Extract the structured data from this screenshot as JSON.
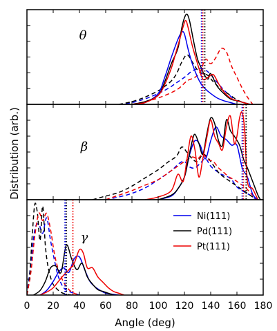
{
  "figure": {
    "ylabel": "Distribution (arb.)",
    "xlabel": "Angle (deg)",
    "x_ticks": [
      "0",
      "20",
      "40",
      "60",
      "80",
      "100",
      "120",
      "140",
      "160",
      "180"
    ],
    "legend": [
      "Ni(111)",
      "Pd(111)",
      "Pt(111)"
    ]
  },
  "colors": {
    "Ni(111)": "#0000ee",
    "Pd(111)": "#000000",
    "Pt(111)": "#ee0000"
  },
  "chart_data": [
    {
      "type": "line",
      "panel": "θ",
      "xlim": [
        0,
        180
      ],
      "x_tick_values": [
        0,
        20,
        40,
        60,
        80,
        100,
        120,
        140,
        160,
        180
      ],
      "series": [
        {
          "name": "Ni(111)",
          "style": "solid",
          "x": [
            80,
            90,
            100,
            105,
            110,
            115,
            118,
            120,
            123,
            126,
            130,
            133,
            136,
            140,
            145,
            150,
            155,
            160
          ],
          "y": [
            0,
            0.02,
            0.12,
            0.3,
            0.52,
            0.72,
            0.8,
            0.78,
            0.6,
            0.45,
            0.3,
            0.22,
            0.17,
            0.12,
            0.07,
            0.04,
            0.02,
            0
          ]
        },
        {
          "name": "Pd(111)",
          "style": "solid",
          "x": [
            80,
            90,
            100,
            105,
            110,
            115,
            118,
            120,
            122,
            124,
            127,
            130,
            133,
            135,
            138,
            140,
            145,
            150,
            155,
            160,
            165,
            170
          ],
          "y": [
            0,
            0.03,
            0.1,
            0.25,
            0.45,
            0.62,
            0.85,
            0.96,
            1.0,
            0.92,
            0.7,
            0.5,
            0.4,
            0.33,
            0.28,
            0.34,
            0.2,
            0.12,
            0.06,
            0.04,
            0.02,
            0
          ]
        },
        {
          "name": "Pt(111)",
          "style": "solid",
          "x": [
            80,
            90,
            100,
            105,
            110,
            113,
            116,
            119,
            121,
            123,
            126,
            130,
            134,
            138,
            142,
            146,
            150,
            155,
            160,
            165,
            170
          ],
          "y": [
            0,
            0.02,
            0.1,
            0.22,
            0.4,
            0.55,
            0.7,
            0.86,
            0.93,
            0.84,
            0.65,
            0.45,
            0.28,
            0.3,
            0.33,
            0.23,
            0.14,
            0.07,
            0.04,
            0.02,
            0
          ]
        },
        {
          "name": "Ni(111)",
          "style": "dashed",
          "x": [
            70,
            80,
            90,
            100,
            108,
            114,
            120,
            126,
            132,
            138,
            144,
            150,
            156,
            160,
            165,
            170
          ],
          "y": [
            0,
            0.02,
            0.06,
            0.12,
            0.18,
            0.24,
            0.3,
            0.37,
            0.4,
            0.36,
            0.26,
            0.16,
            0.08,
            0.04,
            0.02,
            0
          ]
        },
        {
          "name": "Pd(111)",
          "style": "dashed",
          "x": [
            70,
            80,
            90,
            100,
            105,
            110,
            114,
            118,
            122,
            126,
            130,
            134,
            138,
            142,
            148,
            155,
            160,
            165,
            170
          ],
          "y": [
            0,
            0.03,
            0.08,
            0.15,
            0.2,
            0.26,
            0.34,
            0.47,
            0.55,
            0.47,
            0.38,
            0.34,
            0.32,
            0.25,
            0.17,
            0.1,
            0.05,
            0.02,
            0
          ]
        },
        {
          "name": "Pt(111)",
          "style": "dashed",
          "x": [
            80,
            90,
            100,
            110,
            116,
            122,
            128,
            132,
            136,
            140,
            144,
            148,
            152,
            156,
            160,
            164,
            168,
            172
          ],
          "y": [
            0,
            0.03,
            0.07,
            0.13,
            0.18,
            0.26,
            0.3,
            0.36,
            0.5,
            0.45,
            0.52,
            0.62,
            0.58,
            0.42,
            0.3,
            0.18,
            0.08,
            0
          ]
        }
      ],
      "vlines": [
        {
          "name": "Ni(111)",
          "x": 133
        },
        {
          "name": "Pd(111)",
          "x": 135.5
        },
        {
          "name": "Pt(111)",
          "x": 134
        }
      ]
    },
    {
      "type": "line",
      "panel": "β",
      "xlim": [
        0,
        180
      ],
      "x_tick_values": [
        0,
        20,
        40,
        60,
        80,
        100,
        120,
        140,
        160,
        180
      ],
      "series": [
        {
          "name": "Ni(111)",
          "style": "solid",
          "x": [
            100,
            110,
            115,
            120,
            124,
            128,
            132,
            136,
            140,
            144,
            148,
            152,
            156,
            160,
            164,
            168,
            172,
            176
          ],
          "y": [
            0,
            0.04,
            0.12,
            0.25,
            0.5,
            0.65,
            0.6,
            0.45,
            0.65,
            0.8,
            0.7,
            0.66,
            0.6,
            0.6,
            0.35,
            0.25,
            0.06,
            0
          ]
        },
        {
          "name": "Pd(111)",
          "style": "solid",
          "x": [
            100,
            110,
            115,
            120,
            123,
            126,
            128,
            131,
            134,
            137,
            140,
            143,
            146,
            149,
            152,
            155,
            158,
            162,
            165,
            168,
            172,
            176,
            178
          ],
          "y": [
            0,
            0.05,
            0.12,
            0.25,
            0.45,
            0.65,
            0.72,
            0.62,
            0.5,
            0.72,
            0.9,
            0.84,
            0.65,
            0.6,
            0.88,
            0.76,
            0.7,
            0.6,
            0.45,
            0.35,
            0.2,
            0.05,
            0
          ]
        },
        {
          "name": "Pt(111)",
          "style": "solid",
          "x": [
            90,
            100,
            110,
            115,
            119,
            122,
            125,
            128,
            131,
            134,
            137,
            140,
            143,
            146,
            149,
            152,
            155,
            158,
            160,
            162,
            164,
            166,
            168,
            172,
            176
          ],
          "y": [
            0,
            0.03,
            0.1,
            0.28,
            0.2,
            0.45,
            0.7,
            0.55,
            0.25,
            0.45,
            0.68,
            0.88,
            0.7,
            0.62,
            0.55,
            0.8,
            0.92,
            0.62,
            0.7,
            0.9,
            0.96,
            0.75,
            0.2,
            0.12,
            0
          ]
        },
        {
          "name": "Ni(111)",
          "style": "dashed",
          "x": [
            60,
            70,
            80,
            90,
            100,
            110,
            116,
            120,
            124,
            128,
            132,
            136,
            140,
            144,
            148,
            152,
            156,
            160,
            165,
            170,
            175
          ],
          "y": [
            0,
            0.03,
            0.07,
            0.13,
            0.22,
            0.32,
            0.4,
            0.42,
            0.36,
            0.35,
            0.4,
            0.45,
            0.37,
            0.32,
            0.28,
            0.26,
            0.22,
            0.14,
            0.09,
            0.05,
            0
          ]
        },
        {
          "name": "Pd(111)",
          "style": "dashed",
          "x": [
            50,
            60,
            70,
            80,
            90,
            100,
            108,
            114,
            118,
            122,
            126,
            130,
            134,
            138,
            142,
            146,
            150,
            155,
            160,
            165,
            170,
            175
          ],
          "y": [
            0,
            0.04,
            0.08,
            0.15,
            0.24,
            0.33,
            0.42,
            0.48,
            0.58,
            0.52,
            0.45,
            0.42,
            0.5,
            0.46,
            0.38,
            0.3,
            0.25,
            0.2,
            0.15,
            0.1,
            0.05,
            0
          ]
        },
        {
          "name": "Pt(111)",
          "style": "dashed",
          "x": [
            60,
            70,
            80,
            90,
            100,
            108,
            114,
            120,
            126,
            130,
            134,
            138,
            142,
            146,
            150,
            154,
            158,
            162,
            166,
            170,
            175
          ],
          "y": [
            0,
            0.05,
            0.1,
            0.16,
            0.22,
            0.3,
            0.36,
            0.42,
            0.47,
            0.45,
            0.5,
            0.44,
            0.42,
            0.35,
            0.3,
            0.25,
            0.22,
            0.18,
            0.14,
            0.08,
            0
          ]
        }
      ],
      "vlines": [
        {
          "name": "Ni(111)",
          "x": 164
        },
        {
          "name": "Pd(111)",
          "x": 167
        },
        {
          "name": "Pt(111)",
          "x": 165
        }
      ]
    },
    {
      "type": "line",
      "panel": "γ",
      "xlim": [
        0,
        180
      ],
      "x_tick_values": [
        0,
        20,
        40,
        60,
        80,
        100,
        120,
        140,
        160,
        180
      ],
      "series": [
        {
          "name": "Ni(111)",
          "style": "solid",
          "x": [
            10,
            15,
            20,
            24,
            28,
            32,
            36,
            40,
            44,
            48,
            52,
            56,
            60,
            65,
            70
          ],
          "y": [
            0,
            0.05,
            0.15,
            0.25,
            0.3,
            0.25,
            0.4,
            0.42,
            0.28,
            0.15,
            0.09,
            0.05,
            0.02,
            0.01,
            0
          ]
        },
        {
          "name": "Pd(111)",
          "style": "solid",
          "x": [
            5,
            10,
            14,
            18,
            22,
            26,
            30,
            34,
            38,
            42,
            46,
            50,
            54,
            58,
            62,
            66
          ],
          "y": [
            0,
            0.05,
            0.15,
            0.3,
            0.32,
            0.25,
            0.55,
            0.4,
            0.28,
            0.35,
            0.2,
            0.12,
            0.06,
            0.04,
            0.02,
            0
          ]
        },
        {
          "name": "Pt(111)",
          "style": "solid",
          "x": [
            10,
            16,
            20,
            24,
            28,
            32,
            36,
            40,
            43,
            46,
            50,
            54,
            58,
            62,
            66,
            70,
            74
          ],
          "y": [
            0,
            0.04,
            0.08,
            0.15,
            0.22,
            0.28,
            0.35,
            0.5,
            0.46,
            0.3,
            0.3,
            0.2,
            0.14,
            0.08,
            0.04,
            0.02,
            0
          ]
        },
        {
          "name": "Ni(111)",
          "style": "dashed",
          "x": [
            0,
            3,
            6,
            9,
            12,
            15,
            18,
            21,
            24,
            28,
            32,
            36,
            40
          ],
          "y": [
            0,
            0.35,
            0.72,
            0.78,
            0.68,
            0.85,
            0.6,
            0.38,
            0.2,
            0.08,
            0.04,
            0.02,
            0
          ]
        },
        {
          "name": "Pd(111)",
          "style": "dashed",
          "x": [
            0,
            2,
            4,
            6,
            8,
            10,
            12,
            14,
            16,
            19,
            22,
            26,
            30,
            34
          ],
          "y": [
            0,
            0.2,
            0.65,
            1.0,
            0.9,
            0.6,
            0.98,
            0.55,
            0.32,
            0.15,
            0.08,
            0.03,
            0.01,
            0
          ]
        },
        {
          "name": "Pt(111)",
          "style": "dashed",
          "x": [
            0,
            3,
            6,
            9,
            12,
            15,
            18,
            21,
            24,
            28,
            32,
            36,
            40
          ],
          "y": [
            0,
            0.25,
            0.65,
            0.9,
            0.82,
            0.9,
            0.72,
            0.45,
            0.28,
            0.14,
            0.06,
            0.02,
            0
          ]
        }
      ],
      "vlines": [
        {
          "name": "Ni(111)",
          "x": 29
        },
        {
          "name": "Pd(111)",
          "x": 30
        },
        {
          "name": "Pt(111)",
          "x": 35
        }
      ]
    }
  ]
}
